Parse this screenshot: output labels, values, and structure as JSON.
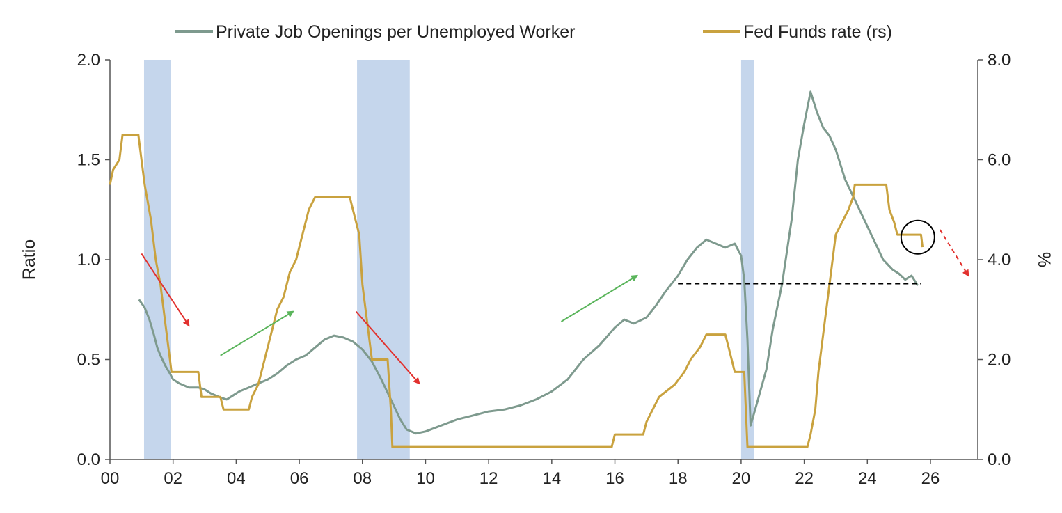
{
  "chart_data": {
    "type": "line",
    "title": "",
    "legend": {
      "placement": "top",
      "entries": [
        {
          "name": "Private Job Openings per Unemployed Worker",
          "color": "#7e9a8e"
        },
        {
          "name": "Fed Funds rate (rs)",
          "color": "#c9a23f"
        }
      ]
    },
    "x_axis": {
      "range": [
        2000,
        2027.5
      ],
      "ticks": [
        {
          "value": 2000,
          "label": "00"
        },
        {
          "value": 2002,
          "label": "02"
        },
        {
          "value": 2004,
          "label": "04"
        },
        {
          "value": 2006,
          "label": "06"
        },
        {
          "value": 2008,
          "label": "08"
        },
        {
          "value": 2010,
          "label": "10"
        },
        {
          "value": 2012,
          "label": "12"
        },
        {
          "value": 2014,
          "label": "14"
        },
        {
          "value": 2016,
          "label": "16"
        },
        {
          "value": 2018,
          "label": "18"
        },
        {
          "value": 2020,
          "label": "20"
        },
        {
          "value": 2022,
          "label": "22"
        },
        {
          "value": 2024,
          "label": "24"
        },
        {
          "value": 2026,
          "label": "26"
        }
      ]
    },
    "y_left": {
      "label": "Ratio",
      "range": [
        0,
        2
      ],
      "ticks": [
        {
          "value": 0,
          "label": "0.0"
        },
        {
          "value": 0.5,
          "label": "0.5"
        },
        {
          "value": 1,
          "label": "1.0"
        },
        {
          "value": 1.5,
          "label": "1.5"
        },
        {
          "value": 2,
          "label": "2.0"
        }
      ]
    },
    "y_right": {
      "label": "%",
      "range": [
        0,
        8
      ],
      "ticks": [
        {
          "value": 0,
          "label": "0.0"
        },
        {
          "value": 2,
          "label": "2.0"
        },
        {
          "value": 4,
          "label": "4.0"
        },
        {
          "value": 6,
          "label": "6.0"
        },
        {
          "value": 8,
          "label": "8.0"
        }
      ]
    },
    "recessions": [
      {
        "start": 2001.08,
        "end": 2001.92,
        "color": "#c5d6ec"
      },
      {
        "start": 2007.83,
        "end": 2009.5,
        "color": "#c5d6ec"
      },
      {
        "start": 2020.0,
        "end": 2020.42,
        "color": "#c5d6ec"
      }
    ],
    "series": [
      {
        "name": "Private Job Openings per Unemployed Worker",
        "axis": "left",
        "color": "#7e9a8e",
        "points": [
          [
            2000.92,
            0.8
          ],
          [
            2001.1,
            0.76
          ],
          [
            2001.25,
            0.7
          ],
          [
            2001.4,
            0.62
          ],
          [
            2001.5,
            0.56
          ],
          [
            2001.6,
            0.52
          ],
          [
            2001.75,
            0.47
          ],
          [
            2001.9,
            0.43
          ],
          [
            2002.0,
            0.4
          ],
          [
            2002.2,
            0.38
          ],
          [
            2002.5,
            0.36
          ],
          [
            2002.8,
            0.36
          ],
          [
            2003.0,
            0.35
          ],
          [
            2003.2,
            0.33
          ],
          [
            2003.5,
            0.31
          ],
          [
            2003.7,
            0.3
          ],
          [
            2003.9,
            0.32
          ],
          [
            2004.1,
            0.34
          ],
          [
            2004.4,
            0.36
          ],
          [
            2004.7,
            0.38
          ],
          [
            2005.0,
            0.4
          ],
          [
            2005.3,
            0.43
          ],
          [
            2005.6,
            0.47
          ],
          [
            2005.9,
            0.5
          ],
          [
            2006.2,
            0.52
          ],
          [
            2006.5,
            0.56
          ],
          [
            2006.8,
            0.6
          ],
          [
            2007.1,
            0.62
          ],
          [
            2007.4,
            0.61
          ],
          [
            2007.7,
            0.59
          ],
          [
            2008.0,
            0.55
          ],
          [
            2008.3,
            0.49
          ],
          [
            2008.6,
            0.4
          ],
          [
            2008.9,
            0.3
          ],
          [
            2009.2,
            0.2
          ],
          [
            2009.4,
            0.15
          ],
          [
            2009.7,
            0.13
          ],
          [
            2010.0,
            0.14
          ],
          [
            2010.5,
            0.17
          ],
          [
            2011.0,
            0.2
          ],
          [
            2011.5,
            0.22
          ],
          [
            2012.0,
            0.24
          ],
          [
            2012.5,
            0.25
          ],
          [
            2013.0,
            0.27
          ],
          [
            2013.5,
            0.3
          ],
          [
            2014.0,
            0.34
          ],
          [
            2014.5,
            0.4
          ],
          [
            2015.0,
            0.5
          ],
          [
            2015.5,
            0.57
          ],
          [
            2016.0,
            0.66
          ],
          [
            2016.3,
            0.7
          ],
          [
            2016.6,
            0.68
          ],
          [
            2017.0,
            0.71
          ],
          [
            2017.3,
            0.77
          ],
          [
            2017.6,
            0.84
          ],
          [
            2018.0,
            0.92
          ],
          [
            2018.3,
            1.0
          ],
          [
            2018.6,
            1.06
          ],
          [
            2018.9,
            1.1
          ],
          [
            2019.2,
            1.08
          ],
          [
            2019.5,
            1.06
          ],
          [
            2019.8,
            1.08
          ],
          [
            2020.0,
            1.02
          ],
          [
            2020.1,
            0.9
          ],
          [
            2020.2,
            0.6
          ],
          [
            2020.3,
            0.17
          ],
          [
            2020.5,
            0.28
          ],
          [
            2020.8,
            0.45
          ],
          [
            2021.0,
            0.65
          ],
          [
            2021.3,
            0.88
          ],
          [
            2021.6,
            1.2
          ],
          [
            2021.8,
            1.5
          ],
          [
            2022.0,
            1.68
          ],
          [
            2022.2,
            1.84
          ],
          [
            2022.4,
            1.74
          ],
          [
            2022.6,
            1.66
          ],
          [
            2022.8,
            1.62
          ],
          [
            2023.0,
            1.55
          ],
          [
            2023.3,
            1.4
          ],
          [
            2023.6,
            1.3
          ],
          [
            2023.9,
            1.2
          ],
          [
            2024.2,
            1.1
          ],
          [
            2024.5,
            1.0
          ],
          [
            2024.8,
            0.95
          ],
          [
            2025.0,
            0.93
          ],
          [
            2025.2,
            0.9
          ],
          [
            2025.4,
            0.92
          ],
          [
            2025.6,
            0.87
          ]
        ]
      },
      {
        "name": "Fed Funds rate (rs)",
        "axis": "right",
        "color": "#c9a23f",
        "points": [
          [
            2000.0,
            5.5
          ],
          [
            2000.1,
            5.8
          ],
          [
            2000.3,
            6.0
          ],
          [
            2000.4,
            6.5
          ],
          [
            2000.9,
            6.5
          ],
          [
            2001.0,
            6.0
          ],
          [
            2001.1,
            5.5
          ],
          [
            2001.3,
            4.8
          ],
          [
            2001.45,
            4.0
          ],
          [
            2001.6,
            3.5
          ],
          [
            2001.7,
            3.0
          ],
          [
            2001.8,
            2.5
          ],
          [
            2001.9,
            2.0
          ],
          [
            2001.95,
            1.75
          ],
          [
            2002.8,
            1.75
          ],
          [
            2002.9,
            1.25
          ],
          [
            2003.5,
            1.25
          ],
          [
            2003.6,
            1.0
          ],
          [
            2004.4,
            1.0
          ],
          [
            2004.5,
            1.25
          ],
          [
            2004.7,
            1.5
          ],
          [
            2004.9,
            2.0
          ],
          [
            2005.1,
            2.5
          ],
          [
            2005.3,
            3.0
          ],
          [
            2005.5,
            3.25
          ],
          [
            2005.7,
            3.75
          ],
          [
            2005.9,
            4.0
          ],
          [
            2006.1,
            4.5
          ],
          [
            2006.3,
            5.0
          ],
          [
            2006.5,
            5.25
          ],
          [
            2007.6,
            5.25
          ],
          [
            2007.8,
            4.75
          ],
          [
            2007.9,
            4.5
          ],
          [
            2008.0,
            3.5
          ],
          [
            2008.1,
            3.0
          ],
          [
            2008.3,
            2.0
          ],
          [
            2008.8,
            2.0
          ],
          [
            2008.9,
            1.0
          ],
          [
            2008.95,
            0.25
          ],
          [
            2015.9,
            0.25
          ],
          [
            2016.0,
            0.5
          ],
          [
            2016.9,
            0.5
          ],
          [
            2017.0,
            0.75
          ],
          [
            2017.2,
            1.0
          ],
          [
            2017.4,
            1.25
          ],
          [
            2017.9,
            1.5
          ],
          [
            2018.2,
            1.75
          ],
          [
            2018.4,
            2.0
          ],
          [
            2018.7,
            2.25
          ],
          [
            2018.9,
            2.5
          ],
          [
            2019.5,
            2.5
          ],
          [
            2019.6,
            2.25
          ],
          [
            2019.7,
            2.0
          ],
          [
            2019.8,
            1.75
          ],
          [
            2020.1,
            1.75
          ],
          [
            2020.15,
            1.0
          ],
          [
            2020.2,
            0.25
          ],
          [
            2022.1,
            0.25
          ],
          [
            2022.2,
            0.5
          ],
          [
            2022.35,
            1.0
          ],
          [
            2022.45,
            1.75
          ],
          [
            2022.6,
            2.5
          ],
          [
            2022.75,
            3.25
          ],
          [
            2022.9,
            4.0
          ],
          [
            2023.0,
            4.5
          ],
          [
            2023.2,
            4.75
          ],
          [
            2023.4,
            5.0
          ],
          [
            2023.55,
            5.25
          ],
          [
            2023.6,
            5.5
          ],
          [
            2024.6,
            5.5
          ],
          [
            2024.7,
            5.0
          ],
          [
            2024.85,
            4.75
          ],
          [
            2024.95,
            4.5
          ],
          [
            2025.7,
            4.5
          ],
          [
            2025.75,
            4.25
          ]
        ]
      }
    ],
    "annotations": {
      "dashed_reference": {
        "x_start": 2018.0,
        "x_end": 2025.7,
        "y": 0.88,
        "color": "#000000"
      },
      "circle": {
        "x": 2025.6,
        "y_right": 4.45,
        "color": "#000000"
      },
      "arrows": [
        {
          "name": "arrow-down-2001",
          "from": [
            2001.0,
            1.03
          ],
          "to": [
            2002.5,
            0.67
          ],
          "color": "#e2312e",
          "dashed": false
        },
        {
          "name": "arrow-up-2004",
          "from": [
            2003.5,
            0.52
          ],
          "to": [
            2005.8,
            0.74
          ],
          "color": "#5bb55c",
          "dashed": false
        },
        {
          "name": "arrow-down-2008",
          "from": [
            2007.8,
            0.74
          ],
          "to": [
            2009.8,
            0.38
          ],
          "color": "#e2312e",
          "dashed": false
        },
        {
          "name": "arrow-up-2015",
          "from": [
            2014.3,
            0.69
          ],
          "to": [
            2016.7,
            0.92
          ],
          "color": "#5bb55c",
          "dashed": false
        },
        {
          "name": "arrow-down-2026",
          "from": [
            2026.3,
            1.15
          ],
          "to": [
            2027.2,
            0.92
          ],
          "color": "#e2312e",
          "dashed": true
        }
      ]
    }
  }
}
